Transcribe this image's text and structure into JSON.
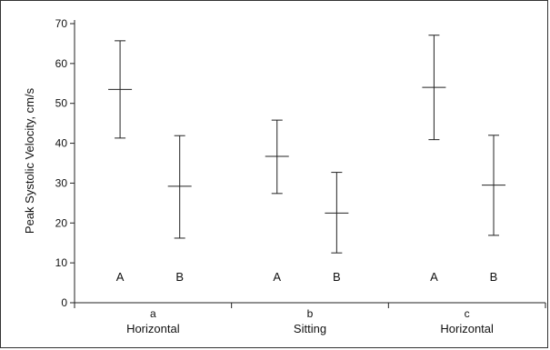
{
  "chart_data": {
    "type": "errorbar",
    "ylabel": "Peak Systolic Velocity, cm/s",
    "ylim": [
      0,
      70
    ],
    "yticks": [
      0,
      10,
      20,
      30,
      40,
      50,
      60,
      70
    ],
    "groups": [
      {
        "letter": "a",
        "name": "Horizontal"
      },
      {
        "letter": "b",
        "name": "Sitting"
      },
      {
        "letter": "c",
        "name": "Horizontal"
      }
    ],
    "points": [
      {
        "group": 0,
        "label": "A",
        "mean": 53.5,
        "low": 41.3,
        "high": 65.7
      },
      {
        "group": 0,
        "label": "B",
        "mean": 29.2,
        "low": 16.2,
        "high": 41.9
      },
      {
        "group": 1,
        "label": "A",
        "mean": 36.7,
        "low": 27.4,
        "high": 45.8
      },
      {
        "group": 1,
        "label": "B",
        "mean": 22.5,
        "low": 12.5,
        "high": 32.7
      },
      {
        "group": 2,
        "label": "A",
        "mean": 54.0,
        "low": 40.9,
        "high": 67.1
      },
      {
        "group": 2,
        "label": "B",
        "mean": 29.5,
        "low": 16.9,
        "high": 42.0
      }
    ],
    "point_label_y": 5.5,
    "grid": false,
    "legend": "none"
  }
}
